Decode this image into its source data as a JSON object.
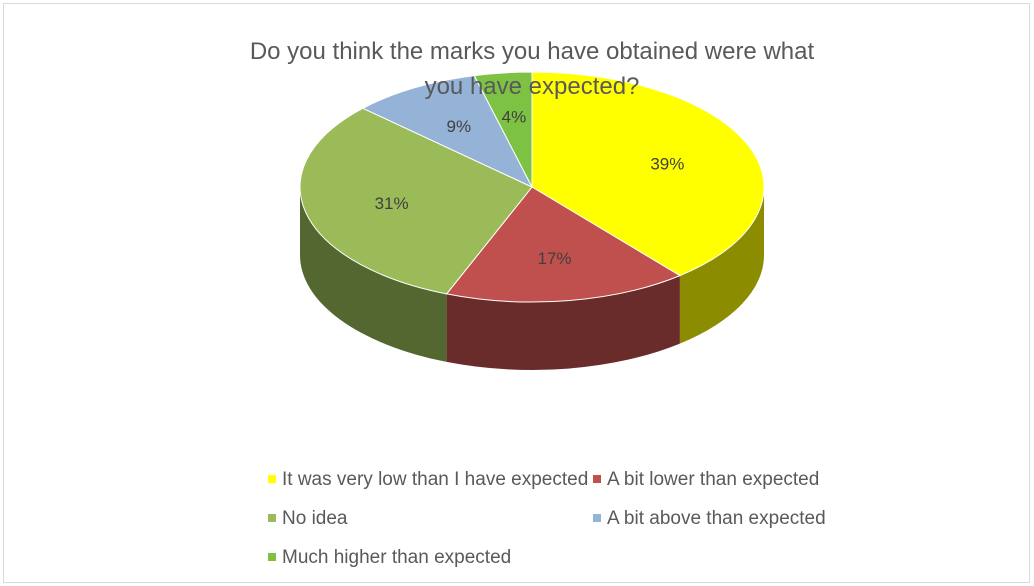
{
  "chart_data": {
    "type": "pie",
    "title": "Do you think the marks you have obtained were what you have expected?",
    "categories": [
      "It was very low than I have expected",
      "A bit lower than expected",
      "No idea",
      "A bit above than expected",
      "Much higher than expected"
    ],
    "values": [
      39,
      17,
      31,
      9,
      4
    ],
    "value_labels": [
      "39%",
      "17%",
      "31%",
      "9%",
      "4%"
    ],
    "colors": [
      "#ffff00",
      "#c0504d",
      "#9bbb59",
      "#95b3d7",
      "#7dc243"
    ],
    "legend": "bottom"
  }
}
